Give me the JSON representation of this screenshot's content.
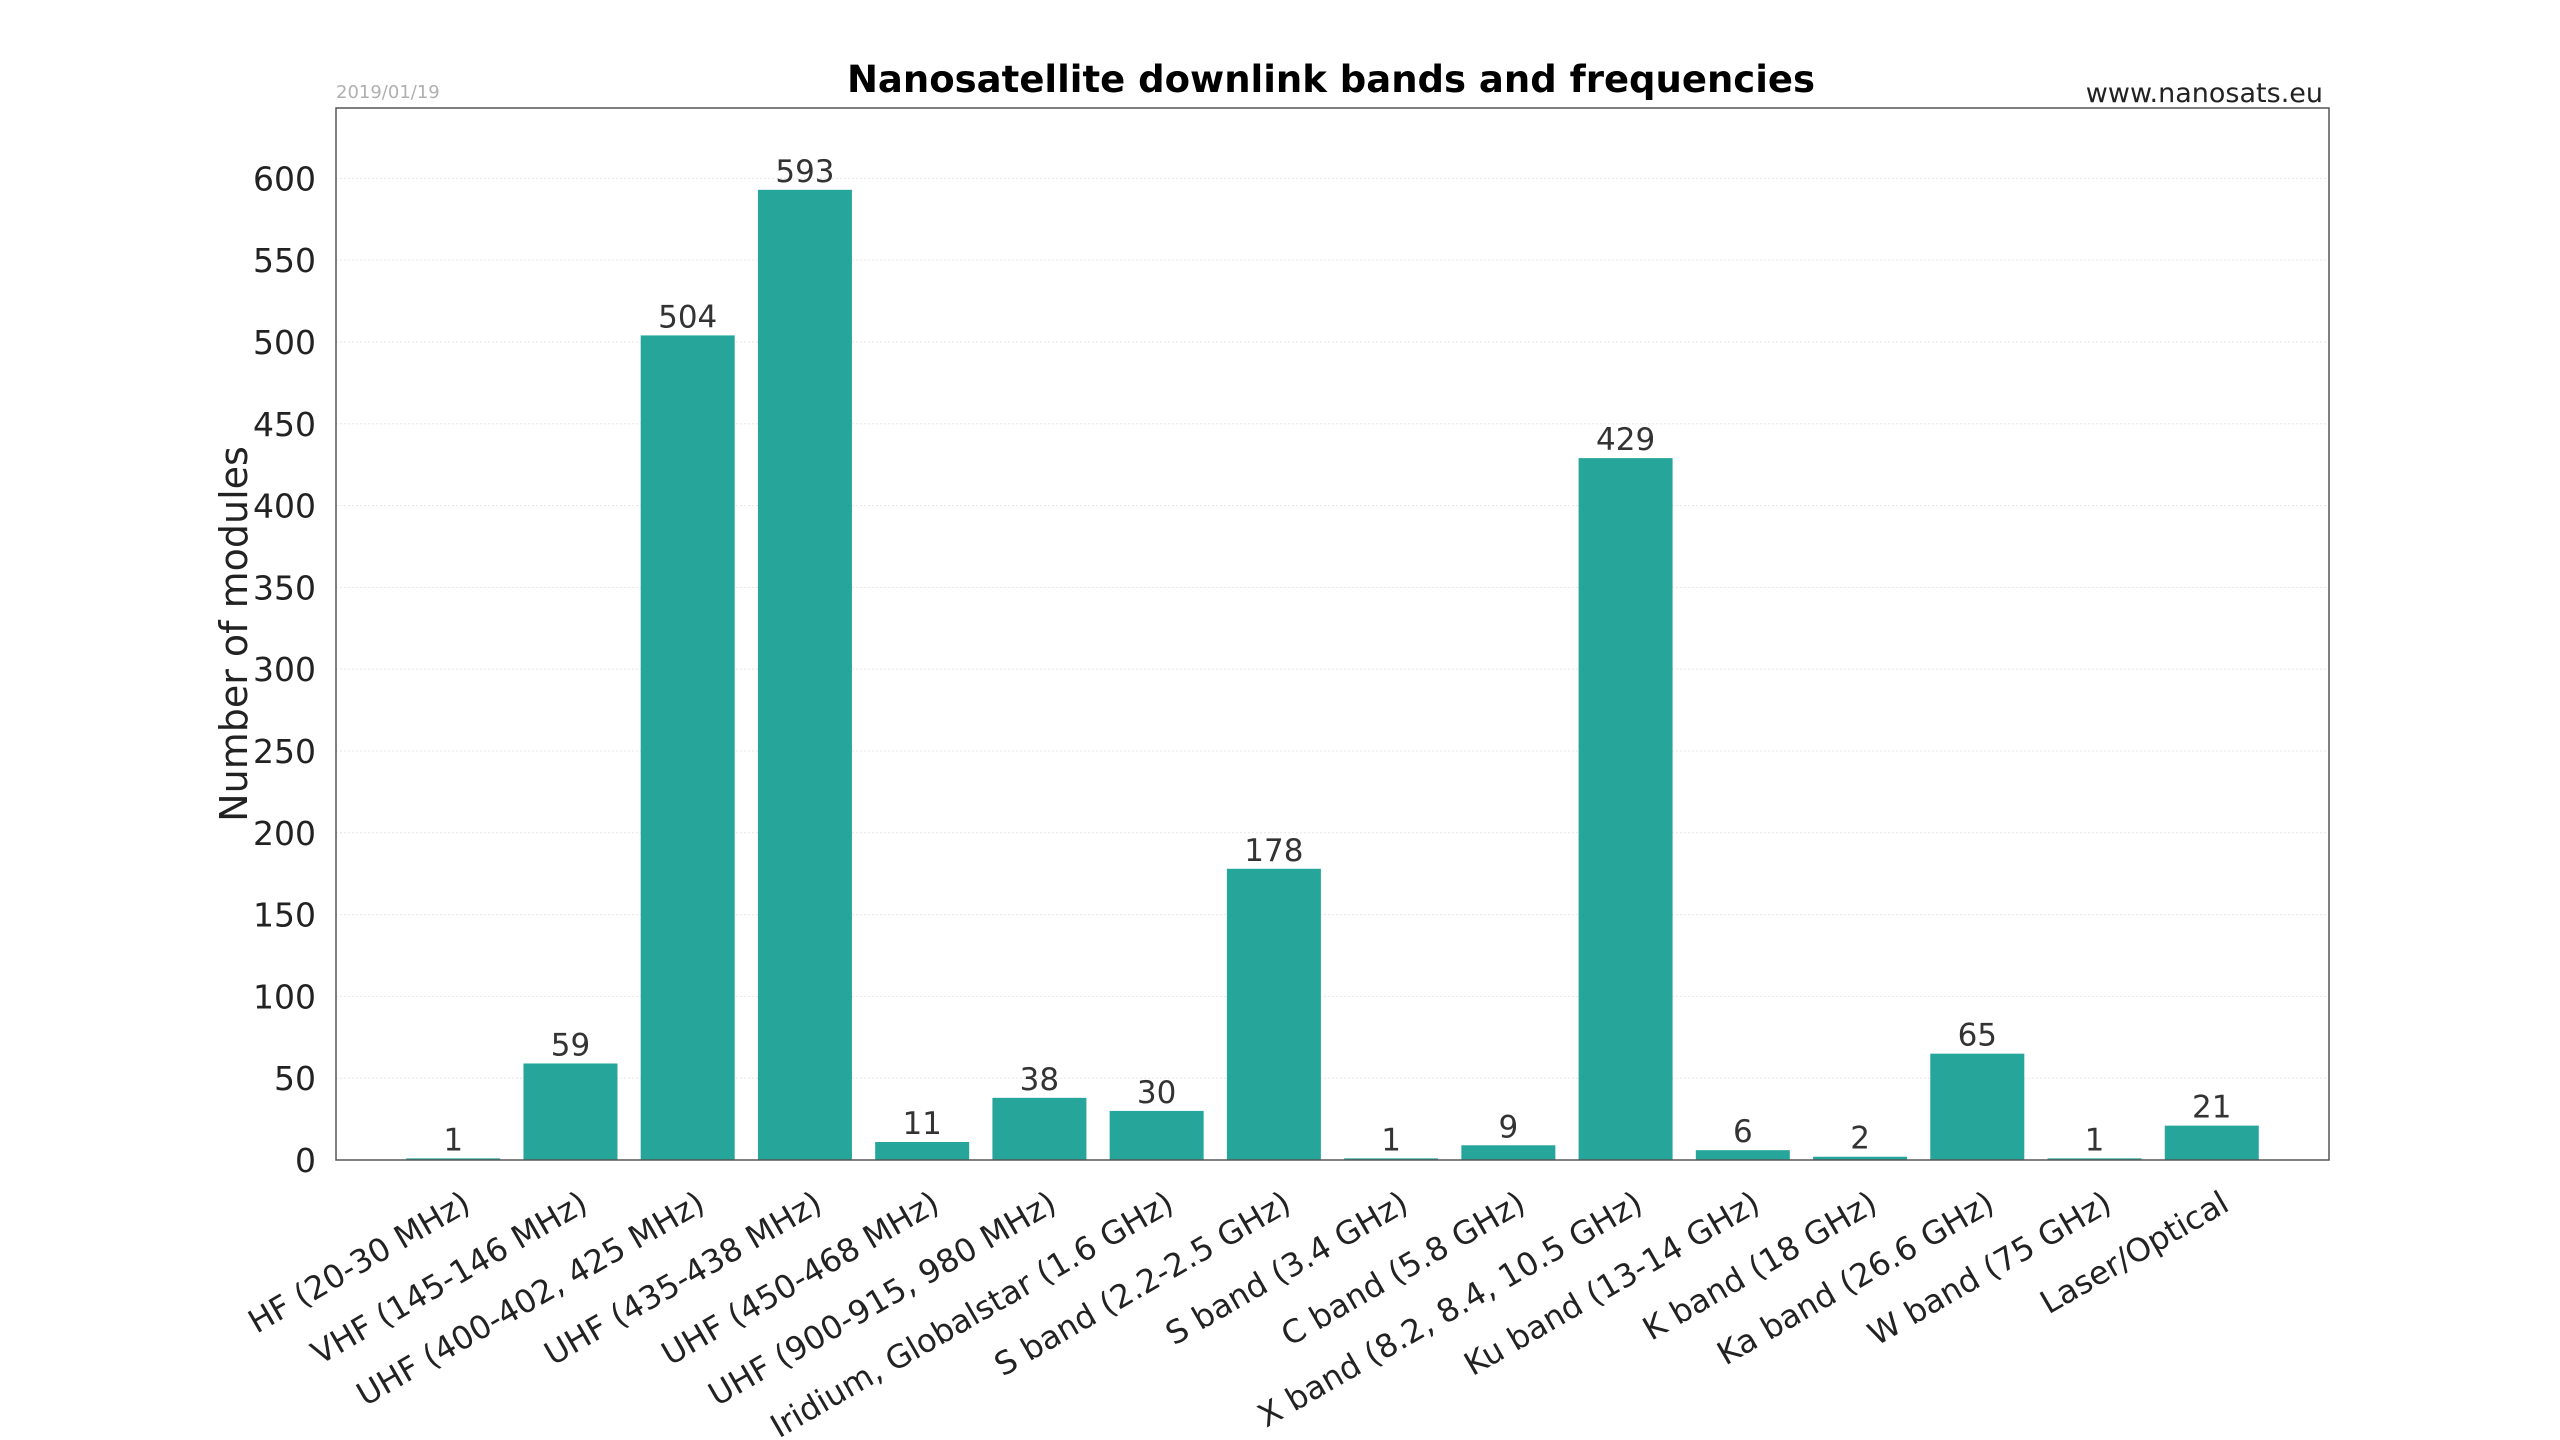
{
  "chart_data": {
    "type": "bar",
    "title": "Nanosatellite downlink bands and frequencies",
    "date": "2019/01/19",
    "source": "www.nanosats.eu",
    "xlabel": "",
    "ylabel": "Number of modules",
    "ylim": [
      0,
      643
    ],
    "yticks": [
      0,
      50,
      100,
      150,
      200,
      250,
      300,
      350,
      400,
      450,
      500,
      550,
      600
    ],
    "grid": true,
    "bar_color": "#26A69A",
    "categories": [
      "HF (20-30 MHz)",
      "VHF (145-146 MHz)",
      "UHF (400-402, 425 MHz)",
      "UHF (435-438 MHz)",
      "UHF (450-468 MHz)",
      "UHF (900-915, 980 MHz)",
      "Iridium, Globalstar (1.6 GHz)",
      "S band (2.2-2.5 GHz)",
      "S band (3.4 GHz)",
      "C band (5.8 GHz)",
      "X band (8.2, 8.4, 10.5 GHz)",
      "Ku band (13-14 GHz)",
      "K band (18 GHz)",
      "Ka band (26.6 GHz)",
      "W band (75 GHz)",
      "Laser/Optical"
    ],
    "values": [
      1,
      59,
      504,
      593,
      11,
      38,
      30,
      178,
      1,
      9,
      429,
      6,
      2,
      65,
      1,
      21
    ]
  }
}
